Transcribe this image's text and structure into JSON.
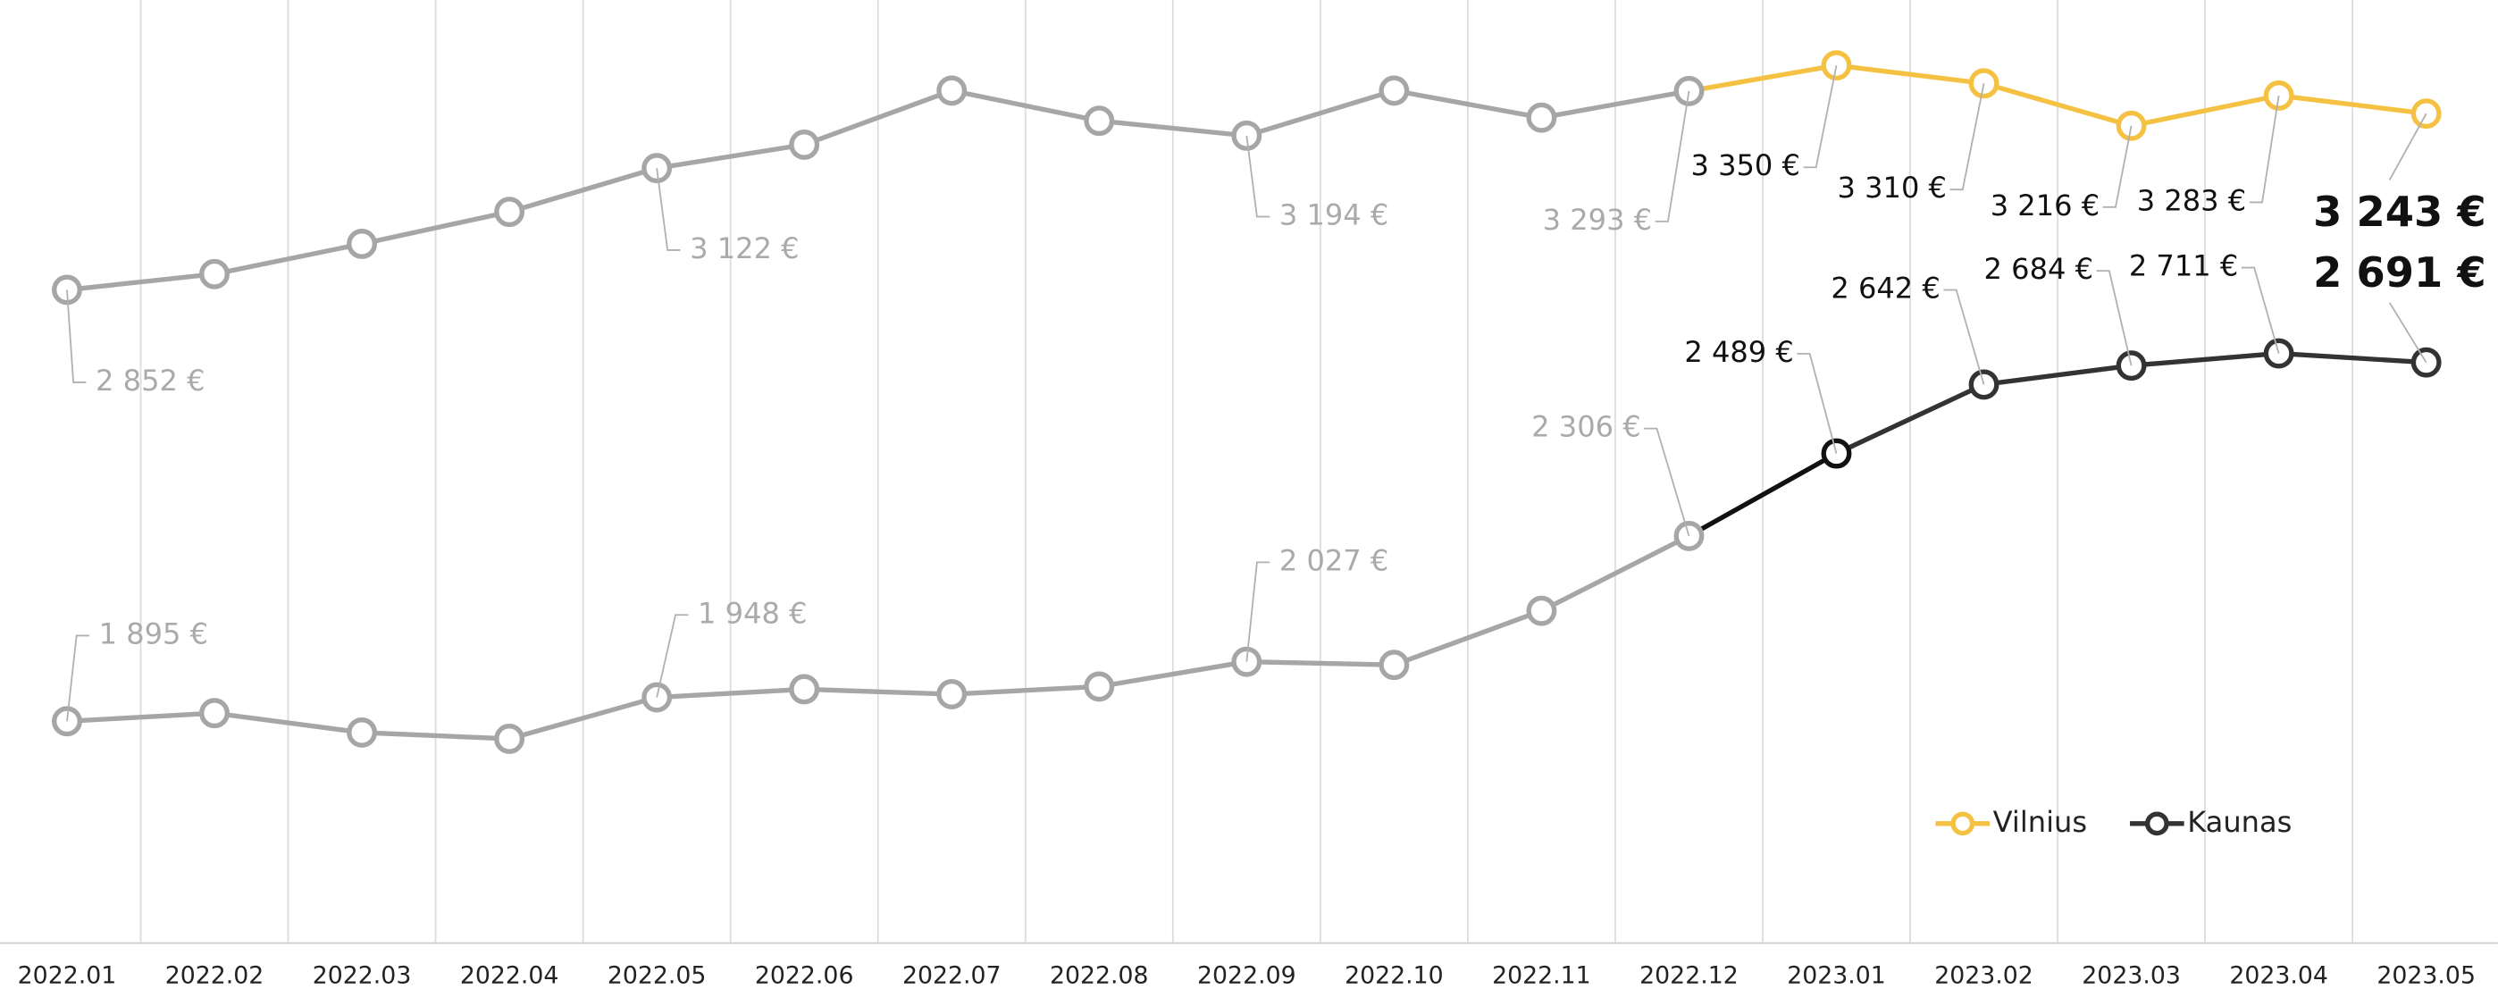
{
  "chart_data": {
    "type": "line",
    "categories": [
      "2022.01",
      "2022.02",
      "2022.03",
      "2022.04",
      "2022.05",
      "2022.06",
      "2022.07",
      "2022.08",
      "2022.09",
      "2022.10",
      "2022.11",
      "2022.12",
      "2023.01",
      "2023.02",
      "2023.03",
      "2023.04",
      "2023.05"
    ],
    "ylim": [
      1410,
      3495
    ],
    "grid": true,
    "legend": "lower right",
    "series": [
      {
        "name": "Vilnius",
        "color": "#f4c142",
        "point_colors": [
          "#a6a6a6",
          "#a6a6a6",
          "#a6a6a6",
          "#a6a6a6",
          "#a6a6a6",
          "#a6a6a6",
          "#a6a6a6",
          "#a6a6a6",
          "#a6a6a6",
          "#a6a6a6",
          "#a6a6a6",
          "#a6a6a6",
          "#f4c142",
          "#f4c142",
          "#f4c142",
          "#f4c142",
          "#f4c142"
        ],
        "values": [
          2852,
          2887,
          2954,
          3025,
          3122,
          3174,
          3294,
          3227,
          3194,
          3294,
          3234,
          3293,
          3350,
          3310,
          3216,
          3283,
          3243
        ],
        "value_labels": [
          "2 852 €",
          null,
          null,
          null,
          "3 122 €",
          null,
          null,
          null,
          "3 194 €",
          null,
          null,
          "3 293 €",
          "3 350 €",
          "3 310 €",
          "3 216 €",
          "3 283 €",
          "3 243 €"
        ]
      },
      {
        "name": "Kaunas",
        "color": "#333333",
        "point_colors": [
          "#a6a6a6",
          "#a6a6a6",
          "#a6a6a6",
          "#a6a6a6",
          "#a6a6a6",
          "#a6a6a6",
          "#a6a6a6",
          "#a6a6a6",
          "#a6a6a6",
          "#a6a6a6",
          "#a6a6a6",
          "#a6a6a6",
          "#111111",
          "#333333",
          "#333333",
          "#333333",
          "#333333"
        ],
        "values": [
          1895,
          1913,
          1870,
          1856,
          1948,
          1966,
          1955,
          1972,
          2027,
          2020,
          2140,
          2306,
          2489,
          2642,
          2684,
          2711,
          2691
        ],
        "value_labels": [
          "1 895 €",
          null,
          null,
          null,
          "1 948 €",
          null,
          null,
          null,
          "2 027 €",
          null,
          null,
          "2 306 €",
          "2 489 €",
          "2 642 €",
          "2 684 €",
          "2 711 €",
          "2 691 €"
        ]
      }
    ]
  }
}
